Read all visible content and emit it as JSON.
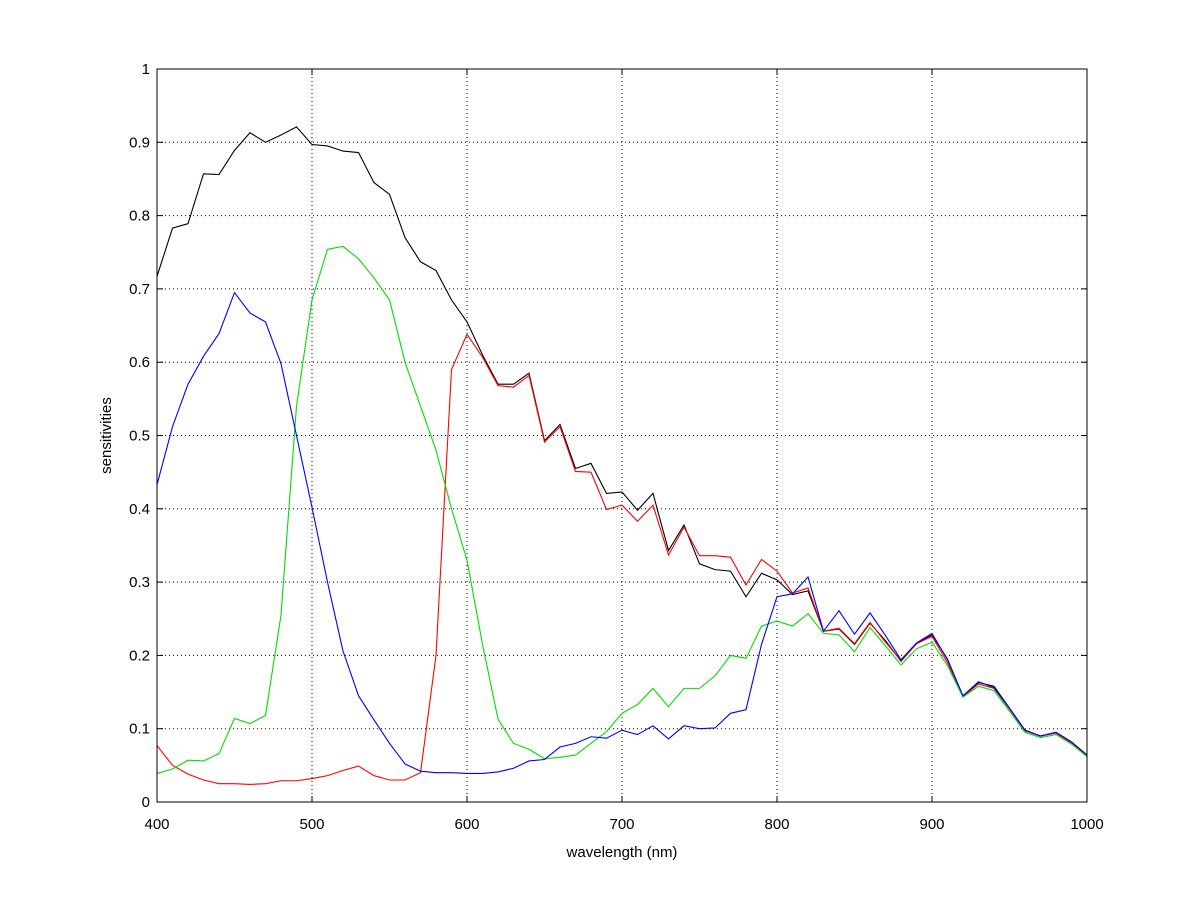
{
  "chart_data": {
    "type": "line",
    "title": "",
    "xlabel": "wavelength (nm)",
    "ylabel": "sensitivities",
    "xlim": [
      400,
      1000
    ],
    "ylim": [
      0,
      1
    ],
    "xticks": [
      "400",
      "500",
      "600",
      "700",
      "800",
      "900",
      "1000"
    ],
    "yticks": [
      "0",
      "0.1",
      "0.2",
      "0.3",
      "0.4",
      "0.5",
      "0.6",
      "0.7",
      "0.8",
      "0.9",
      "1"
    ],
    "grid": true,
    "x": [
      400,
      410,
      420,
      430,
      440,
      450,
      460,
      470,
      480,
      490,
      500,
      510,
      520,
      530,
      540,
      550,
      560,
      570,
      580,
      590,
      600,
      610,
      620,
      630,
      640,
      650,
      660,
      670,
      680,
      690,
      700,
      710,
      720,
      730,
      740,
      750,
      760,
      770,
      780,
      790,
      800,
      810,
      820,
      830,
      840,
      850,
      860,
      870,
      880,
      890,
      900,
      910,
      920,
      930,
      940,
      950,
      960,
      970,
      980,
      990,
      1000
    ],
    "series": [
      {
        "color": "#000000",
        "values": [
          0.717,
          0.783,
          0.789,
          0.857,
          0.856,
          0.889,
          0.913,
          0.9,
          0.91,
          0.921,
          0.897,
          0.895,
          0.888,
          0.886,
          0.845,
          0.829,
          0.77,
          0.737,
          0.725,
          0.685,
          0.655,
          0.61,
          0.57,
          0.57,
          0.585,
          0.493,
          0.515,
          0.455,
          0.462,
          0.421,
          0.423,
          0.398,
          0.421,
          0.343,
          0.378,
          0.325,
          0.317,
          0.315,
          0.28,
          0.312,
          0.303,
          0.283,
          0.288,
          0.233,
          0.236,
          0.215,
          0.244,
          0.22,
          0.192,
          0.216,
          0.228,
          0.195,
          0.144,
          0.163,
          0.158,
          0.128,
          0.098,
          0.09,
          0.095,
          0.082,
          0.064
        ]
      },
      {
        "color": "#ff0000",
        "values": [
          0.077,
          0.05,
          0.038,
          0.03,
          0.025,
          0.025,
          0.024,
          0.025,
          0.029,
          0.029,
          0.032,
          0.036,
          0.043,
          0.049,
          0.036,
          0.03,
          0.03,
          0.04,
          0.2,
          0.59,
          0.638,
          0.607,
          0.568,
          0.566,
          0.582,
          0.491,
          0.512,
          0.451,
          0.45,
          0.399,
          0.405,
          0.383,
          0.405,
          0.337,
          0.375,
          0.336,
          0.336,
          0.334,
          0.296,
          0.331,
          0.315,
          0.285,
          0.292,
          0.233,
          0.237,
          0.216,
          0.245,
          0.218,
          0.193,
          0.216,
          0.226,
          0.19,
          0.144,
          0.161,
          0.155,
          0.127,
          0.097,
          0.09,
          0.094,
          0.08,
          0.063
        ]
      },
      {
        "color": "#00dd00",
        "values": [
          0.039,
          0.045,
          0.057,
          0.056,
          0.066,
          0.114,
          0.107,
          0.118,
          0.255,
          0.54,
          0.685,
          0.754,
          0.758,
          0.741,
          0.715,
          0.685,
          0.6,
          0.54,
          0.48,
          0.4,
          0.33,
          0.215,
          0.113,
          0.08,
          0.072,
          0.059,
          0.061,
          0.064,
          0.08,
          0.096,
          0.121,
          0.133,
          0.155,
          0.13,
          0.155,
          0.155,
          0.172,
          0.2,
          0.196,
          0.24,
          0.247,
          0.24,
          0.257,
          0.23,
          0.228,
          0.205,
          0.238,
          0.213,
          0.187,
          0.209,
          0.218,
          0.186,
          0.143,
          0.158,
          0.152,
          0.124,
          0.095,
          0.088,
          0.092,
          0.079,
          0.062
        ]
      },
      {
        "color": "#0000ff",
        "values": [
          0.433,
          0.512,
          0.57,
          0.608,
          0.639,
          0.695,
          0.667,
          0.655,
          0.598,
          0.5,
          0.402,
          0.3,
          0.206,
          0.145,
          0.112,
          0.08,
          0.052,
          0.042,
          0.04,
          0.04,
          0.039,
          0.039,
          0.041,
          0.046,
          0.056,
          0.058,
          0.075,
          0.08,
          0.089,
          0.087,
          0.098,
          0.092,
          0.104,
          0.086,
          0.104,
          0.1,
          0.101,
          0.121,
          0.126,
          0.215,
          0.28,
          0.284,
          0.307,
          0.233,
          0.261,
          0.229,
          0.258,
          0.227,
          0.194,
          0.217,
          0.23,
          0.194,
          0.145,
          0.164,
          0.156,
          0.128,
          0.098,
          0.09,
          0.095,
          0.082,
          0.064
        ]
      }
    ]
  }
}
